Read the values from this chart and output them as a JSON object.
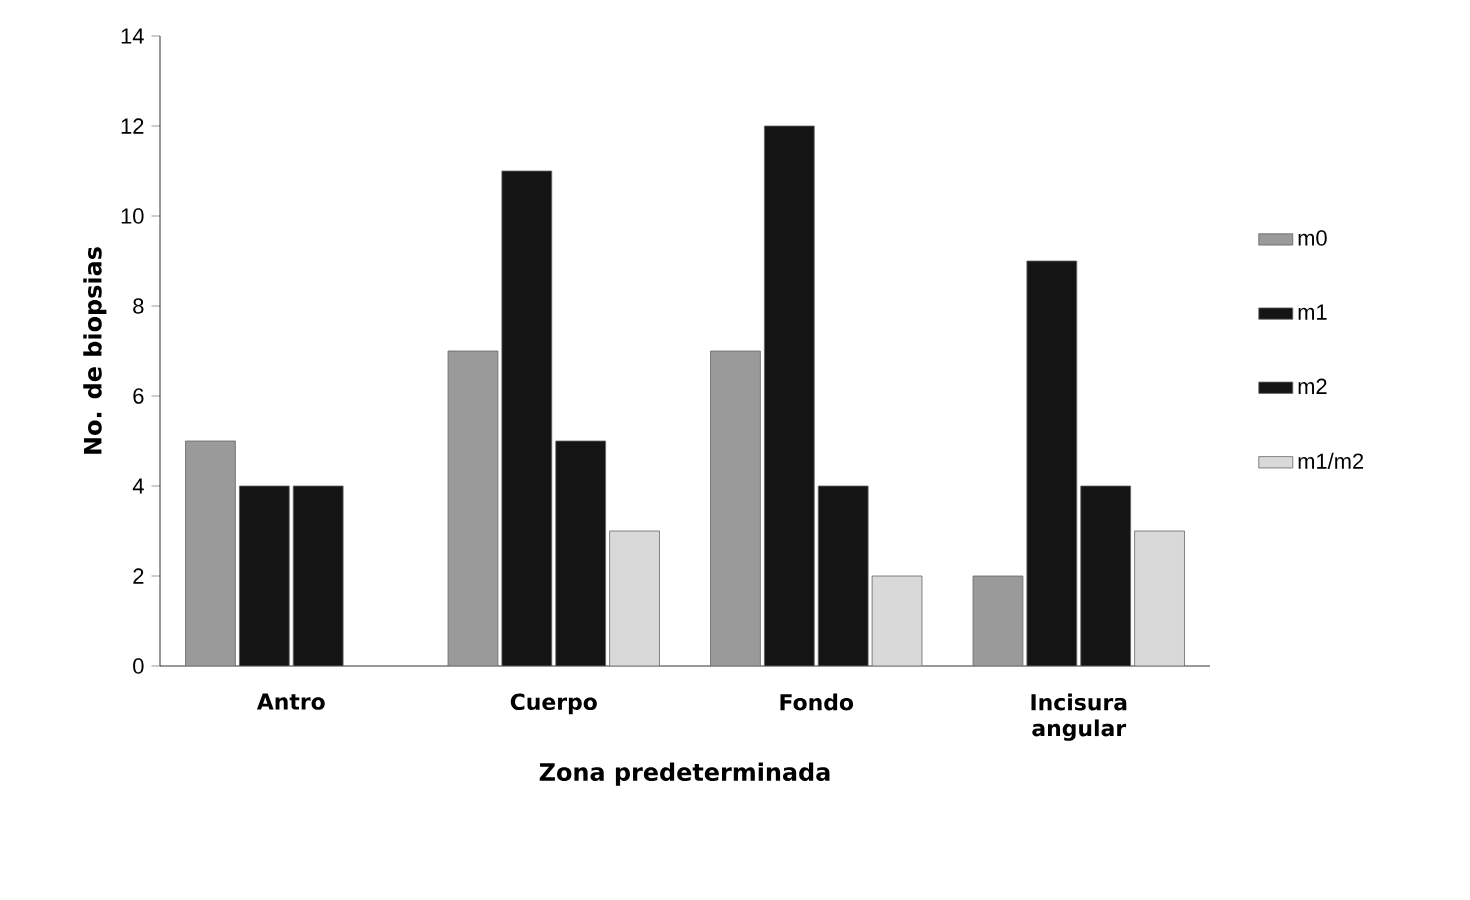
{
  "chart_data": {
    "type": "bar",
    "xlabel": "Zona predeterminada",
    "ylabel": "No. de biopsias",
    "categories": [
      "Antro",
      "Cuerpo",
      "Fondo",
      "Incisura angular"
    ],
    "series": [
      {
        "name": "m0",
        "color": "#9a9a9a",
        "values": [
          5,
          7,
          7,
          2
        ]
      },
      {
        "name": "m1",
        "color": "#141414",
        "values": [
          4,
          11,
          12,
          9
        ]
      },
      {
        "name": "m2",
        "color": "#141414",
        "values": [
          4,
          5,
          4,
          4
        ]
      },
      {
        "name": "m1/m2",
        "color": "#d9d9d9",
        "values": [
          null,
          3,
          2,
          3
        ]
      }
    ],
    "ylim": [
      0,
      14
    ],
    "yticks": [
      0,
      2,
      4,
      6,
      8,
      10,
      12,
      14
    ],
    "grid": false,
    "legend": "right"
  }
}
